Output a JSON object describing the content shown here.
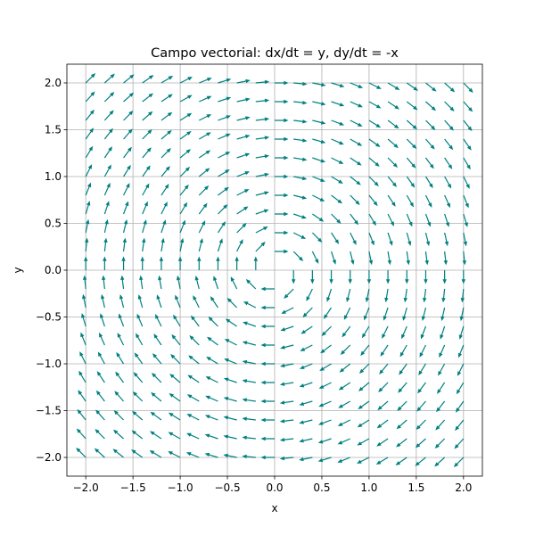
{
  "chart_data": {
    "type": "quiver",
    "title": "Campo vectorial: dx/dt = y, dy/dt = -x",
    "xlabel": "x",
    "ylabel": "y",
    "xlim": [
      -2.2,
      2.2
    ],
    "ylim": [
      -2.2,
      2.2
    ],
    "xticks": [
      -2.0,
      -1.5,
      -1.0,
      -0.5,
      0.0,
      0.5,
      1.0,
      1.5,
      2.0
    ],
    "yticks": [
      -2.0,
      -1.5,
      -1.0,
      -0.5,
      0.0,
      0.5,
      1.0,
      1.5,
      2.0
    ],
    "xtick_labels": [
      "−2.0",
      "−1.5",
      "−1.0",
      "−0.5",
      "0.0",
      "0.5",
      "1.0",
      "1.5",
      "2.0"
    ],
    "ytick_labels": [
      "−2.0",
      "−1.5",
      "−1.0",
      "−0.5",
      "0.0",
      "0.5",
      "1.0",
      "1.5",
      "2.0"
    ],
    "grid": true,
    "field": {
      "dx": "y",
      "dy": "-x",
      "normalized": true
    },
    "grid_points": {
      "x_min": -2.0,
      "x_max": 2.0,
      "y_min": -2.0,
      "y_max": 2.0,
      "count": 21
    },
    "arrow_color": "#008080"
  }
}
